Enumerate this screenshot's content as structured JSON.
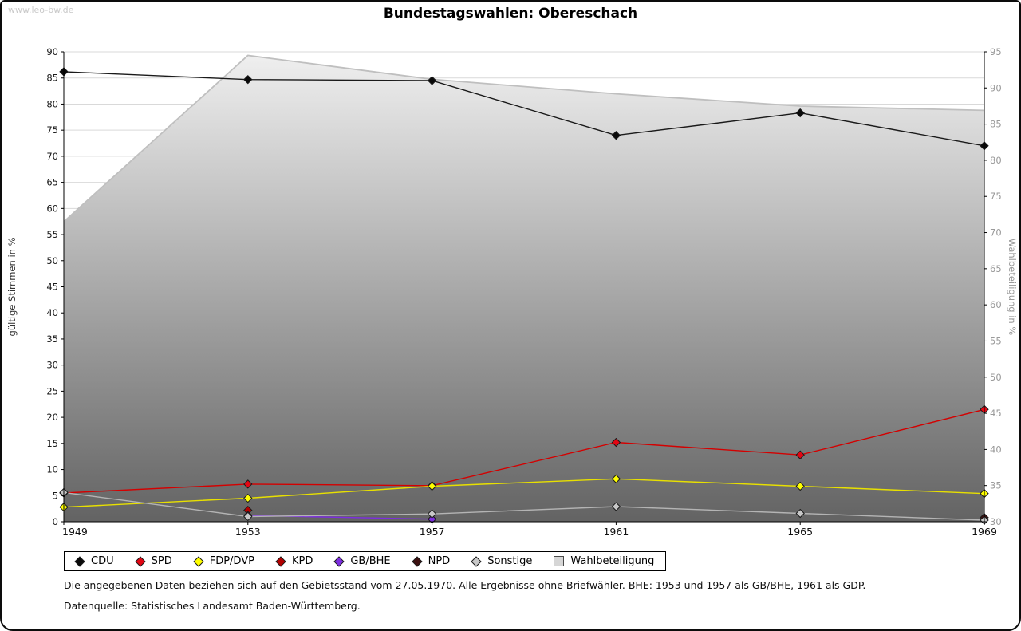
{
  "page": {
    "watermark": "www.leo-bw.de",
    "title": "Bundestagswahlen: Obereschach",
    "footnote1": "Die angegebenen Daten beziehen sich auf den Gebietsstand vom 27.05.1970. Alle Ergebnisse ohne Briefwähler. BHE: 1953 und 1957 als GB/BHE, 1961 als GDP.",
    "footnote2": "Datenquelle: Statistisches Landesamt Baden-Württemberg."
  },
  "chart_data": {
    "type": "line",
    "title": "Bundestagswahlen: Obereschach",
    "x_values": [
      1949,
      1953,
      1957,
      1961,
      1965,
      1969
    ],
    "x_ticks": [
      "1949",
      "1953",
      "1957",
      "1961",
      "1965",
      "1969"
    ],
    "left_axis": {
      "label": "gültige Stimmen in %",
      "min": 0,
      "max": 90,
      "step": 5,
      "ticks": [
        0,
        5,
        10,
        15,
        20,
        25,
        30,
        35,
        40,
        45,
        50,
        55,
        60,
        65,
        70,
        75,
        80,
        85,
        90
      ]
    },
    "right_axis": {
      "label": "Wahlbeteiligung in %",
      "min": 30,
      "max": 95,
      "step": 5,
      "ticks": [
        30,
        35,
        40,
        45,
        50,
        55,
        60,
        65,
        70,
        75,
        80,
        85,
        90,
        95
      ]
    },
    "grid": true,
    "legend_position": "bottom",
    "series": [
      {
        "name": "CDU",
        "axis": "left",
        "marker": "diamond",
        "color": "#0a0a0a",
        "line_color": "#1a1a1a",
        "values": [
          86.2,
          84.7,
          84.5,
          74.0,
          78.3,
          72.0
        ]
      },
      {
        "name": "SPD",
        "axis": "left",
        "marker": "diamond",
        "color": "#e30613",
        "line_color": "#d40000",
        "values": [
          5.5,
          7.2,
          6.9,
          15.2,
          12.8,
          21.5
        ]
      },
      {
        "name": "FDP/DVP",
        "axis": "left",
        "marker": "diamond",
        "color": "#ffff00",
        "line_color": "#e8e000",
        "values": [
          2.8,
          4.5,
          6.8,
          8.2,
          6.8,
          5.4
        ]
      },
      {
        "name": "KPD",
        "axis": "left",
        "marker": "diamond",
        "color": "#b30000",
        "line_color": "#b30000",
        "values": [
          null,
          2.2,
          null,
          null,
          null,
          null
        ]
      },
      {
        "name": "GB/BHE",
        "axis": "left",
        "marker": "diamond",
        "color": "#7d2ee0",
        "line_color": "#7d2ee0",
        "values": [
          null,
          1.2,
          0.5,
          null,
          null,
          null
        ]
      },
      {
        "name": "NPD",
        "axis": "left",
        "marker": "diamond",
        "color": "#3c1010",
        "line_color": "#3c1010",
        "values": [
          null,
          null,
          null,
          null,
          null,
          0.8
        ]
      },
      {
        "name": "Sonstige",
        "axis": "left",
        "marker": "diamond",
        "color": "#c8c8c8",
        "line_color": "#b4b4b4",
        "values": [
          5.6,
          1.0,
          1.5,
          2.9,
          1.6,
          0.3
        ]
      },
      {
        "name": "Wahlbeteiligung",
        "axis": "right",
        "marker": "square",
        "color": "#d6d6d6",
        "line_color": "#bfbfbf",
        "area": true,
        "area_gradient": [
          "#f0f0f0",
          "#636363"
        ],
        "values": [
          71.5,
          94.5,
          91.2,
          89.2,
          87.5,
          86.9
        ]
      }
    ]
  }
}
